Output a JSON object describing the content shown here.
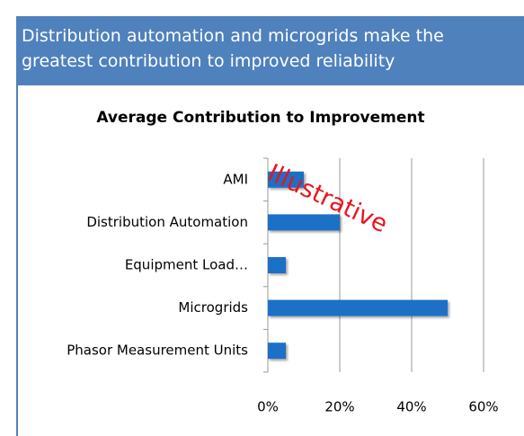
{
  "header": "Distribution automation and microgrids make the greatest contribution to improved reliability",
  "chart_data": {
    "type": "barh",
    "title": "Average Contribution to Improvement",
    "categories": [
      "AMI",
      "Distribution Automation",
      "Equipment Load…",
      "Microgrids",
      "Phasor Measurement Units"
    ],
    "values": [
      10,
      20,
      5,
      50,
      5
    ],
    "color": "#1f6fc6",
    "xlim": [
      0,
      60
    ],
    "xticks": [
      {
        "value": 0,
        "label": "0%"
      },
      {
        "value": 20,
        "label": "20%"
      },
      {
        "value": 40,
        "label": "40%"
      },
      {
        "value": 60,
        "label": "60%"
      }
    ],
    "grid": true,
    "annotation": "Illustrative"
  }
}
